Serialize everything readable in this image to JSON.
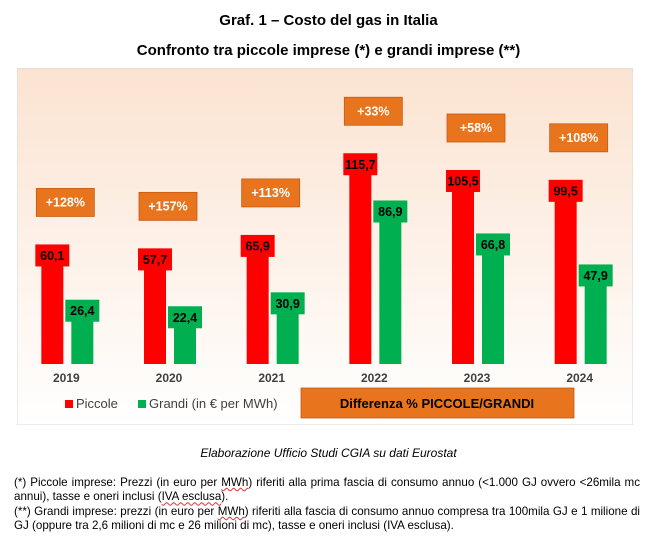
{
  "title": "Graf. 1 – Costo del gas in Italia",
  "subtitle": "Confronto tra piccole imprese (*) e grandi imprese (**)",
  "source": "Elaborazione Ufficio Studi CGIA su dati Eurostat",
  "notes": {
    "n1_prefix": "(*) Piccole imprese: Prezzi (in euro per ",
    "n1_unit": "MWh",
    "n1_mid": ") riferiti alla prima fascia di consumo annuo (<1.000 GJ ovvero <26mila mc annui), tasse e oneri inclusi (",
    "n1_iva": "IVA esclusa",
    "n1_end": ").",
    "n2_prefix": "(**) Grandi imprese: prezzi (in euro per ",
    "n2_unit": "MWh",
    "n2_end": ") riferiti alla fascia di consumo annuo compresa tra 100mila GJ e 1 milione di GJ (oppure tra 2,6 milioni di mc e 26 milioni di mc), tasse e oneri inclusi (IVA esclusa)."
  },
  "colors": {
    "piccole": "#ff0000",
    "grandi": "#00b050",
    "diff_box": "#e8741d",
    "bg_top": "#fbe3d1",
    "bg_bottom": "#ffffff"
  },
  "chart_data": {
    "type": "bar",
    "categories": [
      "2019",
      "2020",
      "2021",
      "2022",
      "2023",
      "2024"
    ],
    "series": [
      {
        "name": "Piccole",
        "values": [
          60.1,
          57.7,
          65.9,
          115.7,
          105.5,
          99.5
        ],
        "labels": [
          "60,1",
          "57,7",
          "65,9",
          "115,7",
          "105,5",
          "99,5"
        ]
      },
      {
        "name": "Grandi (in € per MWh)",
        "values": [
          26.4,
          22.4,
          30.9,
          86.9,
          66.8,
          47.9
        ],
        "labels": [
          "26,4",
          "22,4",
          "30,9",
          "86,9",
          "66,8",
          "47,9"
        ]
      }
    ],
    "differences": [
      "+128%",
      "+157%",
      "+113%",
      "+33%",
      "+58%",
      "+108%"
    ],
    "difference_label": "Differenza % PICCOLE/GRANDI",
    "ylim": [
      0,
      150
    ],
    "legend": "bottom-left",
    "grid": false
  }
}
